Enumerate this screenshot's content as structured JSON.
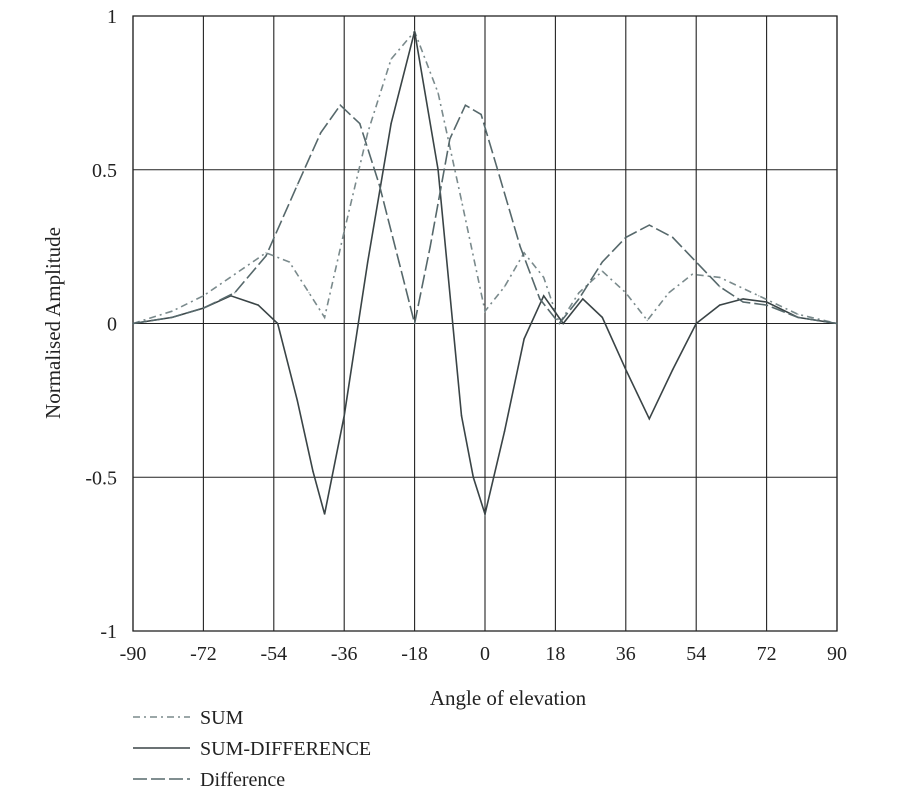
{
  "chart_data": {
    "type": "line",
    "title": "",
    "xlabel": "Angle of elevation",
    "ylabel": "Normalised Amplitude",
    "xlim": [
      -90,
      90
    ],
    "ylim": [
      -1,
      1
    ],
    "grid": true,
    "xticks": [
      -90,
      -72,
      -54,
      -36,
      -18,
      0,
      18,
      36,
      54,
      72,
      90
    ],
    "xtick_labels": [
      "-90",
      "-72",
      "-54",
      "-36",
      "-18",
      "0",
      "18",
      "36",
      "54",
      "72",
      "90"
    ],
    "yticks": [
      1,
      0.5,
      0,
      -0.5,
      -1
    ],
    "ytick_labels": [
      "1",
      "0.5",
      "0",
      "-0.5",
      "-1"
    ],
    "legend_position": "bottom-left",
    "series": [
      {
        "name": "SUM",
        "style": "dash-dot",
        "color": "#7a8a8c",
        "x": [
          -90,
          -80,
          -72,
          -64,
          -56,
          -50,
          -45,
          -41,
          -36,
          -30,
          -24,
          -18,
          -12,
          -6,
          0,
          5,
          10,
          15,
          19,
          24,
          30,
          36,
          41.5,
          47,
          53,
          60,
          70,
          80,
          90
        ],
        "y": [
          0,
          0.04,
          0.09,
          0.16,
          0.23,
          0.2,
          0.1,
          0.02,
          0.3,
          0.62,
          0.86,
          0.95,
          0.75,
          0.4,
          0.04,
          0.12,
          0.23,
          0.15,
          0.0,
          0.1,
          0.17,
          0.1,
          0.01,
          0.1,
          0.16,
          0.15,
          0.09,
          0.03,
          0
        ]
      },
      {
        "name": "SUM-DIFFERENCE",
        "style": "solid",
        "color": "#3a4446",
        "x": [
          -90,
          -80,
          -72,
          -65,
          -58,
          -53,
          -48,
          -44,
          -41,
          -36,
          -30,
          -24,
          -18,
          -12,
          -6,
          -3,
          0,
          5,
          10,
          15,
          20,
          25,
          30,
          36,
          42,
          48,
          54,
          60,
          66,
          72,
          80,
          90
        ],
        "y": [
          0,
          0.02,
          0.05,
          0.09,
          0.06,
          0,
          -0.25,
          -0.48,
          -0.62,
          -0.3,
          0.2,
          0.65,
          0.95,
          0.5,
          -0.3,
          -0.5,
          -0.62,
          -0.35,
          -0.05,
          0.09,
          0,
          0.08,
          0.02,
          -0.15,
          -0.31,
          -0.15,
          0.0,
          0.06,
          0.08,
          0.07,
          0.02,
          0
        ]
      },
      {
        "name": "Difference",
        "style": "long-dash",
        "color": "#56686b",
        "x": [
          -90,
          -80,
          -72,
          -64,
          -56,
          -48,
          -42,
          -37,
          -32,
          -27,
          -22,
          -18,
          -14,
          -9,
          -5,
          -1,
          3,
          9,
          14,
          19,
          24,
          30,
          36,
          42,
          48,
          54,
          60,
          66,
          72,
          80,
          90
        ],
        "y": [
          0,
          0.02,
          0.05,
          0.1,
          0.22,
          0.45,
          0.62,
          0.71,
          0.65,
          0.45,
          0.2,
          0,
          0.25,
          0.6,
          0.71,
          0.68,
          0.51,
          0.25,
          0.08,
          0.0,
          0.08,
          0.2,
          0.28,
          0.32,
          0.28,
          0.2,
          0.12,
          0.07,
          0.06,
          0.02,
          0
        ]
      }
    ]
  }
}
